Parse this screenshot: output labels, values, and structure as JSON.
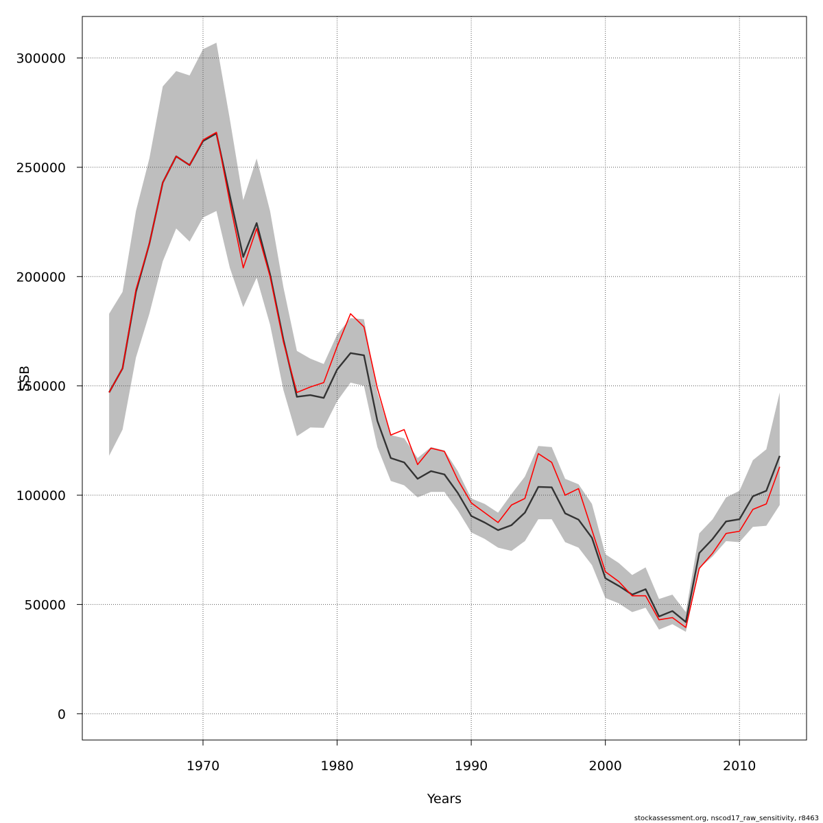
{
  "chart_data": {
    "type": "line",
    "xlabel": "Years",
    "ylabel": "SSB",
    "xlim": [
      1961,
      2015
    ],
    "ylim": [
      -12000,
      319000
    ],
    "xticks": [
      1970,
      1980,
      1990,
      2000,
      2010
    ],
    "yticks": [
      0,
      50000,
      100000,
      150000,
      200000,
      250000,
      300000
    ],
    "grid": true,
    "x": [
      1963,
      1964,
      1965,
      1966,
      1967,
      1968,
      1969,
      1970,
      1971,
      1972,
      1973,
      1974,
      1975,
      1976,
      1977,
      1978,
      1979,
      1980,
      1981,
      1982,
      1983,
      1984,
      1985,
      1986,
      1987,
      1988,
      1989,
      1990,
      1991,
      1992,
      1993,
      1994,
      1995,
      1996,
      1997,
      1998,
      1999,
      2000,
      2001,
      2002,
      2003,
      2004,
      2005,
      2006,
      2007,
      2008,
      2009,
      2010,
      2011,
      2012,
      2013
    ],
    "series": [
      {
        "values": [
          147000,
          158000,
          193000,
          215000,
          243000,
          255000,
          251000,
          262000,
          265500,
          237000,
          209000,
          224500,
          201000,
          171000,
          145000,
          145800,
          144500,
          157500,
          165000,
          164000,
          134000,
          117000,
          115000,
          107500,
          111000,
          109500,
          101000,
          90500,
          87500,
          84000,
          86300,
          92000,
          103800,
          103600,
          91700,
          88800,
          80500,
          62000,
          58500,
          54500,
          57000,
          44500,
          47000,
          42000,
          73500,
          80000,
          88000,
          89000,
          99500,
          102000,
          118000
        ],
        "color": "#333333"
      },
      {
        "values": [
          147000,
          158000,
          194000,
          215000,
          243000,
          255000,
          251000,
          262500,
          266000,
          234000,
          204000,
          222000,
          200000,
          170000,
          147000,
          149500,
          151500,
          168000,
          183000,
          177000,
          149000,
          127500,
          130000,
          114000,
          121500,
          120000,
          107000,
          96500,
          92000,
          87500,
          95500,
          98500,
          119000,
          115000,
          100000,
          103000,
          84000,
          65000,
          60500,
          54000,
          54000,
          43000,
          44000,
          39500,
          66500,
          73500,
          82500,
          83500,
          93500,
          96000,
          113000
        ],
        "color": "#ff0000"
      }
    ],
    "band": {
      "upper": [
        183000,
        193000,
        230000,
        254000,
        287000,
        294000,
        292000,
        304000,
        307000,
        272000,
        235000,
        254000,
        230000,
        195000,
        166000,
        162500,
        160000,
        173500,
        181000,
        180500,
        147000,
        127500,
        126000,
        117000,
        122000,
        120500,
        111000,
        98500,
        96000,
        92000,
        100500,
        108500,
        122500,
        122000,
        107500,
        105000,
        96000,
        73000,
        69000,
        63500,
        67000,
        52500,
        54500,
        46500,
        82500,
        89000,
        99000,
        102000,
        116000,
        121000,
        147000
      ],
      "lower": [
        118000,
        130000,
        163000,
        183000,
        207000,
        222000,
        216000,
        227000,
        230000,
        204000,
        186000,
        199500,
        178000,
        148000,
        127000,
        131000,
        130800,
        143000,
        151500,
        150000,
        122000,
        106500,
        104500,
        99000,
        101500,
        101500,
        93000,
        83000,
        80000,
        76000,
        74500,
        79000,
        89000,
        89000,
        78500,
        76000,
        68000,
        53000,
        50500,
        46500,
        48500,
        38500,
        41000,
        37500,
        66500,
        72000,
        79000,
        78500,
        85500,
        86000,
        95500
      ],
      "color": "#bebebe"
    }
  },
  "footer": "stockassessment.org, nscod17_raw_sensitivity, r8463"
}
